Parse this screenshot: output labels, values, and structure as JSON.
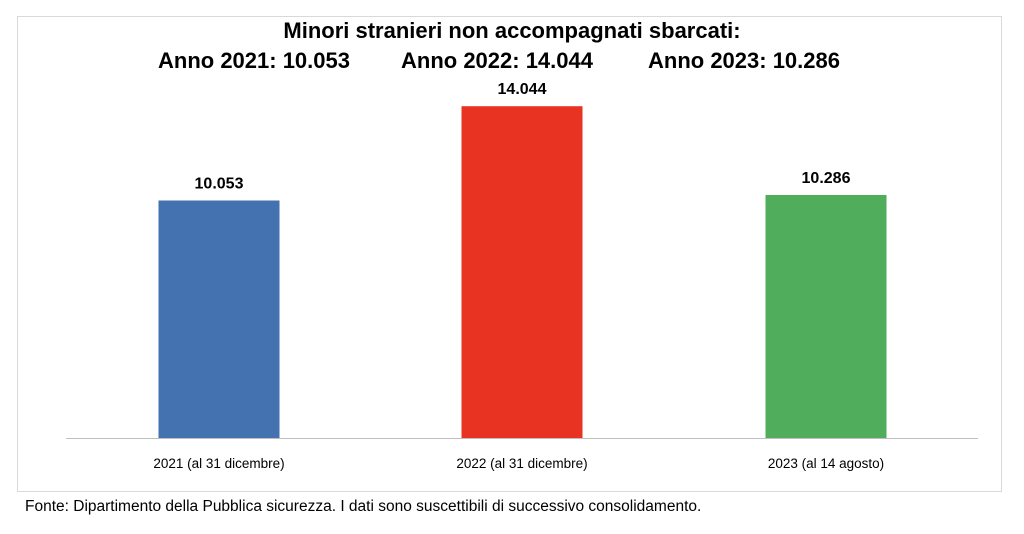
{
  "title": "Minori stranieri non accompagnati sbarcati:",
  "subtitles": [
    "Anno 2021: 10.053",
    "Anno 2022: 14.044",
    "Anno 2023: 10.286"
  ],
  "source": "Fonte: Dipartimento della Pubblica sicurezza. I dati sono suscettibili di successivo consolidamento.",
  "colors": {
    "bar_2021": "#4472b0",
    "bar_2022": "#e83323",
    "bar_2023": "#4fad5b",
    "axis": "#bfbfbf"
  },
  "chart_data": {
    "type": "bar",
    "title": "Minori stranieri non accompagnati sbarcati:",
    "categories": [
      "2021 (al 31 dicembre)",
      "2022 (al 31 dicembre)",
      "2023 (al 14 agosto)"
    ],
    "values": [
      10053,
      14044,
      10286
    ],
    "data_labels": [
      "10.053",
      "14.044",
      "10.286"
    ],
    "xlabel": "",
    "ylabel": "",
    "ylim": [
      0,
      16000
    ],
    "grid": false,
    "legend": "none"
  }
}
